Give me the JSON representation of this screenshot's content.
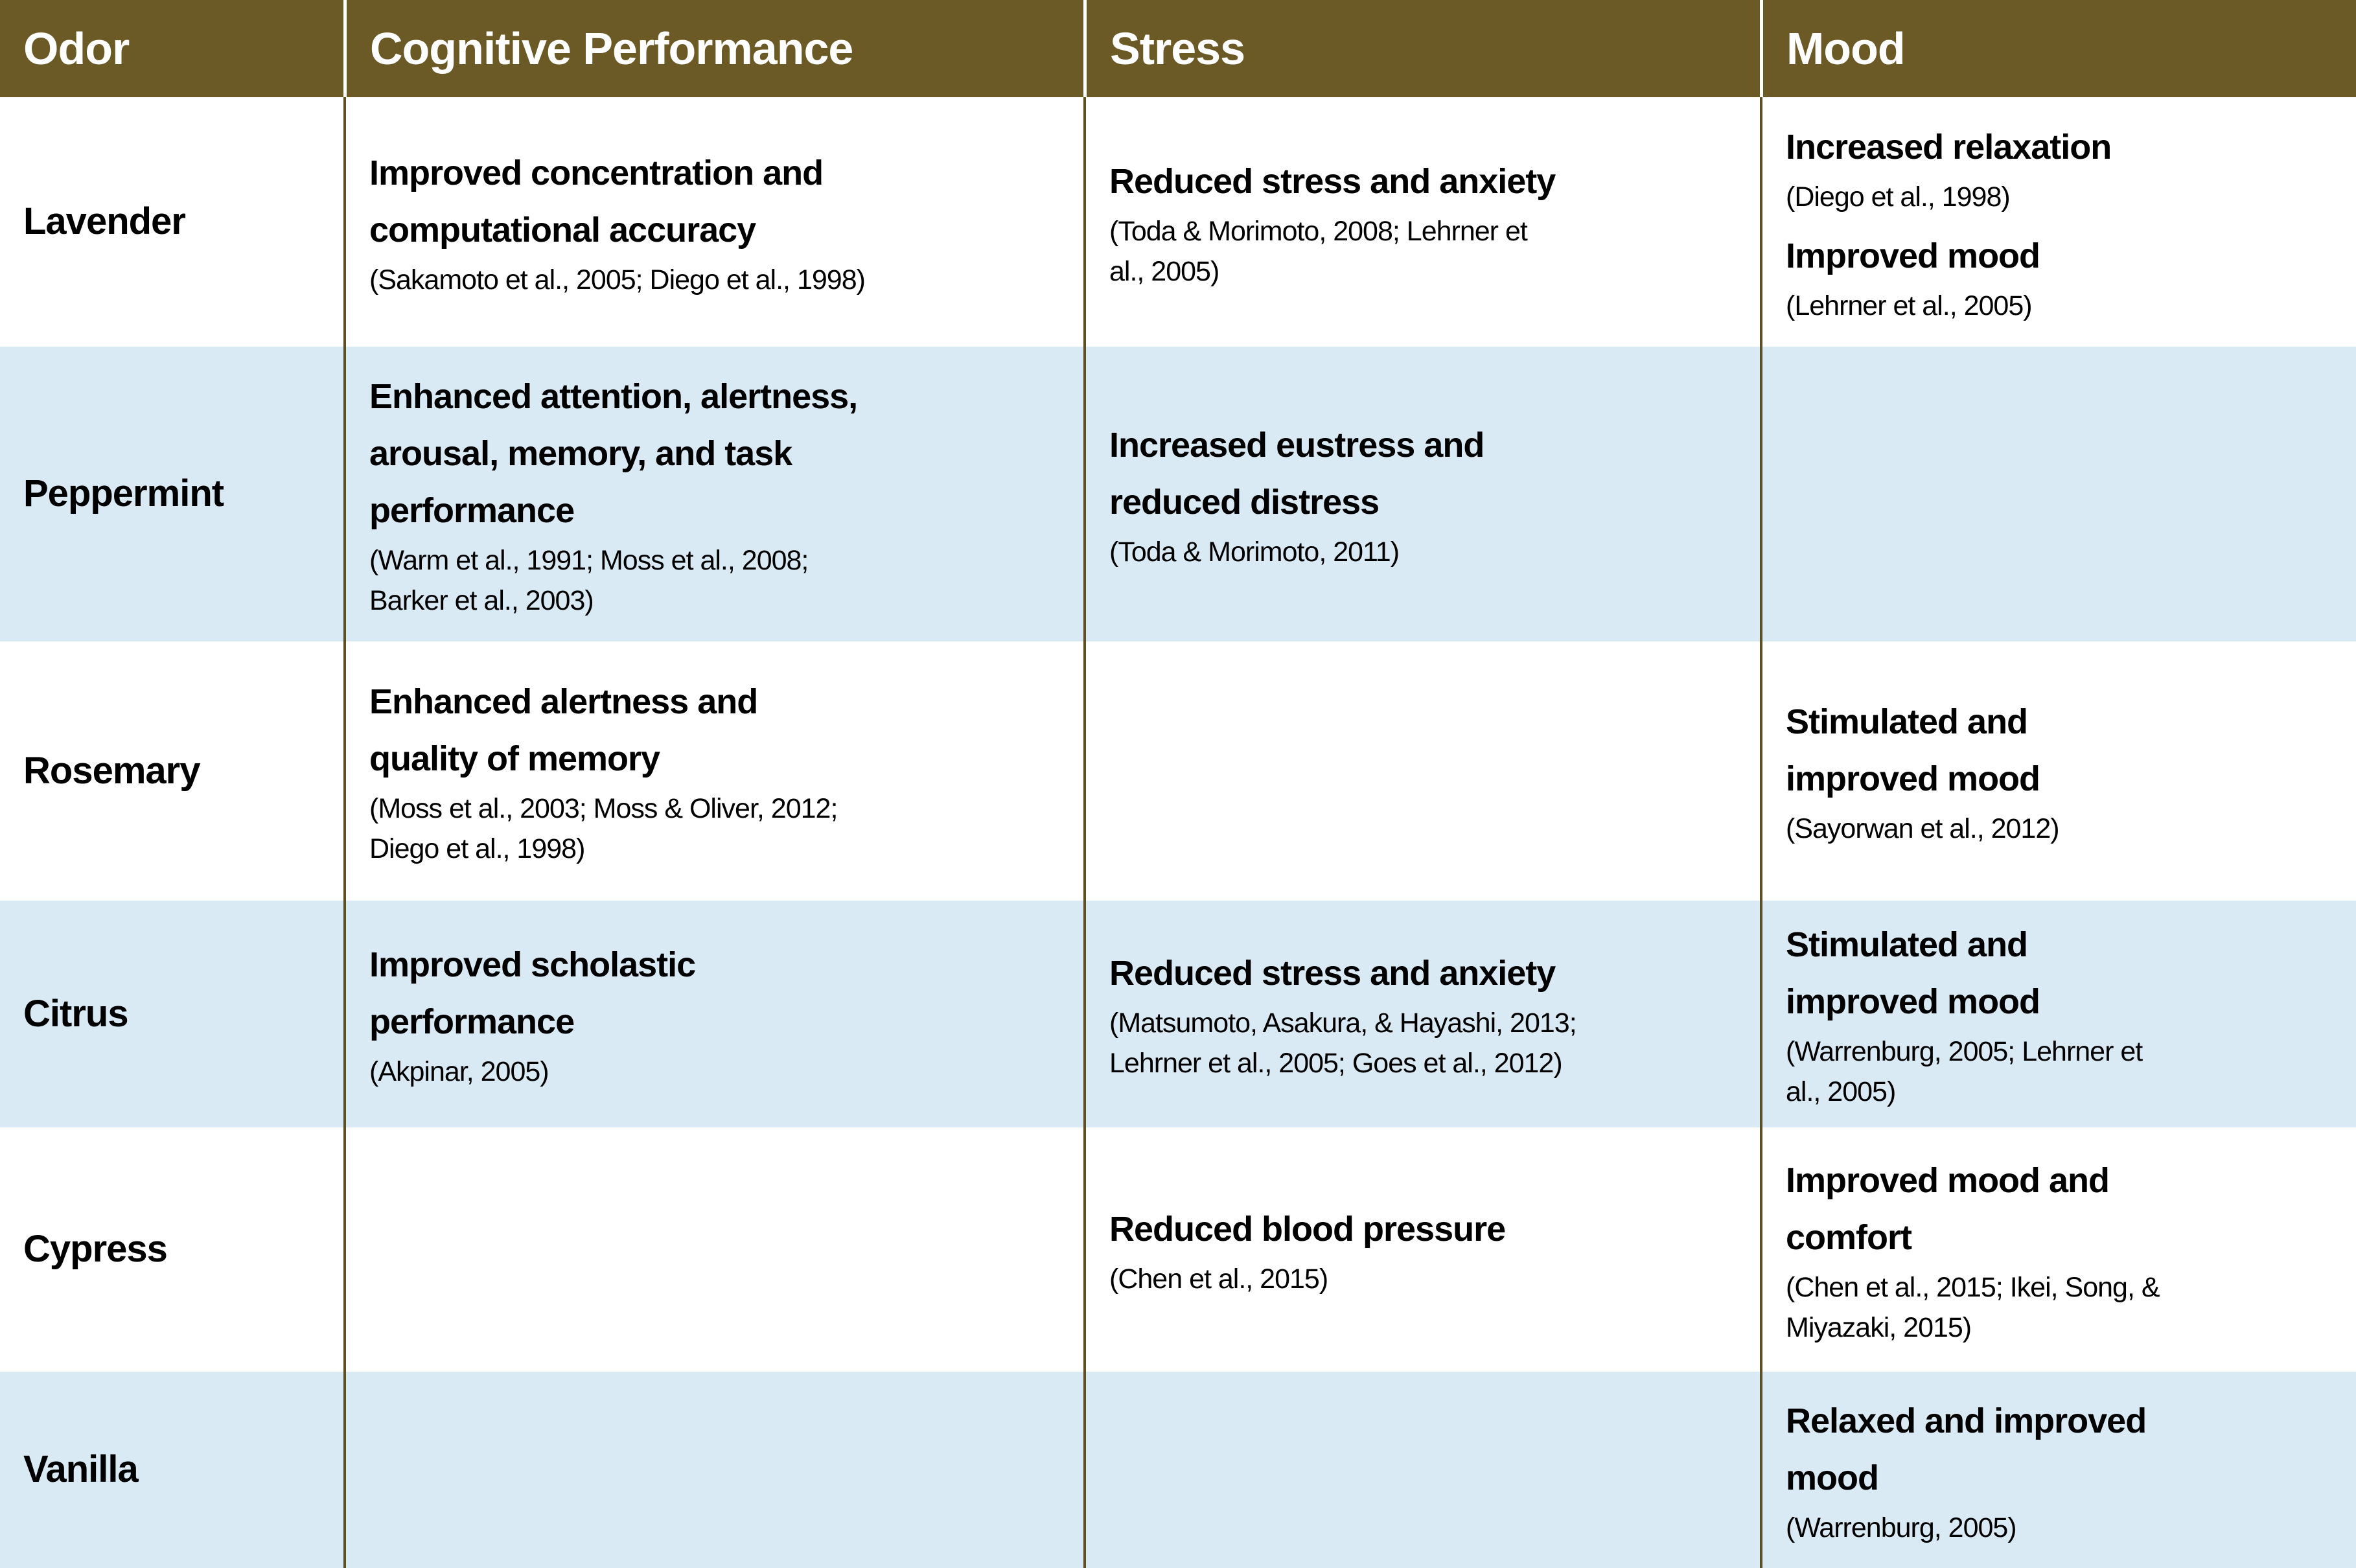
{
  "colors": {
    "header_bg": "#6b5a26",
    "header_text": "#ffffff",
    "row_bg": "#ffffff",
    "row_alt_bg": "#daeaf4",
    "divider": "#5e4f22",
    "text": "#000000"
  },
  "table": {
    "columns": [
      "Odor",
      "Cognitive Performance",
      "Stress",
      "Mood"
    ],
    "rows": [
      {
        "odor": "Lavender",
        "cognitive": [
          {
            "effect": "Improved concentration and\ncomputational accuracy",
            "citation": "(Sakamoto et al., 2005; Diego et al., 1998)"
          }
        ],
        "stress": [
          {
            "effect": "Reduced stress and anxiety",
            "citation": "(Toda & Morimoto, 2008; Lehrner et\nal., 2005)"
          }
        ],
        "mood": [
          {
            "effect": "Increased relaxation",
            "citation": "(Diego et al., 1998)"
          },
          {
            "effect": "Improved mood",
            "citation": "(Lehrner et al., 2005)"
          }
        ]
      },
      {
        "odor": "Peppermint",
        "cognitive": [
          {
            "effect": "Enhanced attention, alertness,\narousal, memory, and task\nperformance",
            "citation": "(Warm et al., 1991; Moss et al., 2008;\nBarker et al., 2003)"
          }
        ],
        "stress": [
          {
            "effect": "Increased eustress and\nreduced distress",
            "citation": "(Toda & Morimoto, 2011)"
          }
        ],
        "mood": []
      },
      {
        "odor": "Rosemary",
        "cognitive": [
          {
            "effect": "Enhanced alertness and\nquality of memory",
            "citation": "(Moss et al., 2003; Moss & Oliver, 2012;\nDiego et al., 1998)"
          }
        ],
        "stress": [],
        "mood": [
          {
            "effect": "Stimulated and\nimproved mood",
            "citation": "(Sayorwan et al., 2012)"
          }
        ]
      },
      {
        "odor": "Citrus",
        "cognitive": [
          {
            "effect": "Improved scholastic\nperformance",
            "citation": "(Akpinar, 2005)"
          }
        ],
        "stress": [
          {
            "effect": "Reduced stress and anxiety",
            "citation": "(Matsumoto, Asakura, & Hayashi, 2013;\nLehrner et al., 2005; Goes et al., 2012)"
          }
        ],
        "mood": [
          {
            "effect": "Stimulated and\nimproved mood",
            "citation": "(Warrenburg, 2005; Lehrner et\nal., 2005)"
          }
        ]
      },
      {
        "odor": "Cypress",
        "cognitive": [],
        "stress": [
          {
            "effect": "Reduced blood pressure",
            "citation": "(Chen et al., 2015)"
          }
        ],
        "mood": [
          {
            "effect": "Improved mood and\ncomfort",
            "citation": "(Chen et al., 2015; Ikei, Song, &\nMiyazaki, 2015)"
          }
        ]
      },
      {
        "odor": "Vanilla",
        "cognitive": [],
        "stress": [],
        "mood": [
          {
            "effect": "Relaxed and improved\nmood",
            "citation": "(Warrenburg, 2005)"
          }
        ]
      }
    ]
  }
}
